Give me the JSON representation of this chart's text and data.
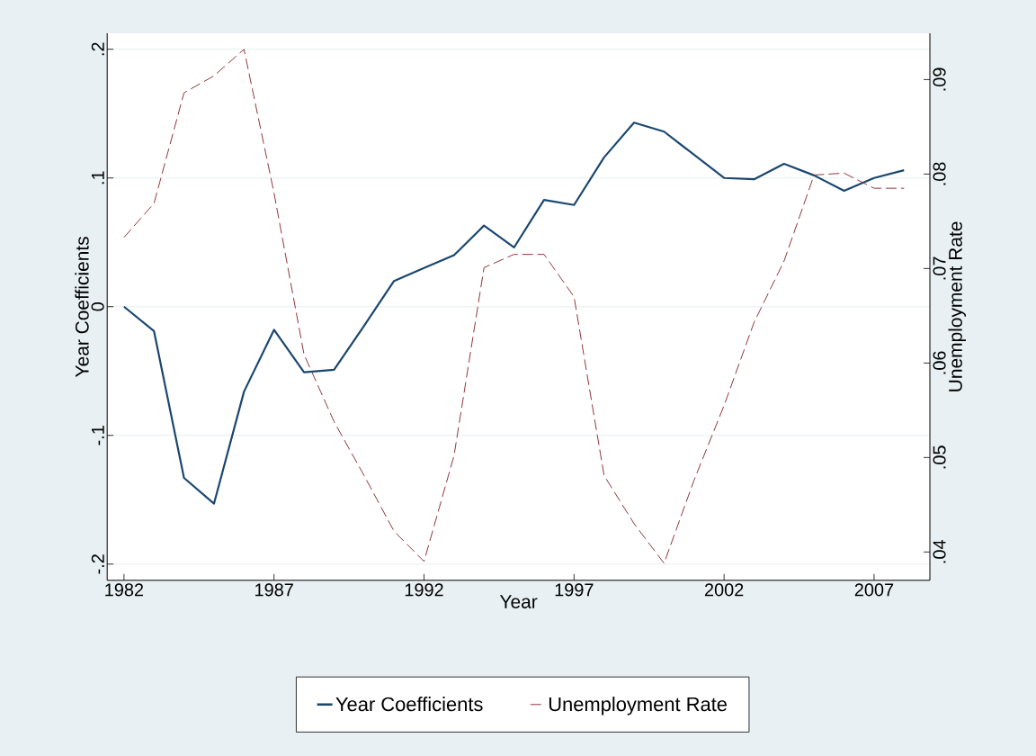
{
  "chart_data": {
    "type": "line",
    "xlabel": "Year",
    "ylabel": "Year Coefficients",
    "y2label": "Unemployment Rate",
    "x": [
      1982,
      1983,
      1984,
      1985,
      1986,
      1987,
      1988,
      1989,
      1990,
      1991,
      1992,
      1993,
      1994,
      1995,
      1996,
      1997,
      1998,
      1999,
      2000,
      2001,
      2002,
      2003,
      2004,
      2005,
      2006,
      2007,
      2008
    ],
    "xlim": [
      1981.44,
      2008.86
    ],
    "xticks": [
      1982,
      1987,
      1992,
      1997,
      2002,
      2007
    ],
    "ylim": [
      -0.2126,
      0.2124
    ],
    "yticks": [
      {
        "value": -0.2,
        "label": "-.2"
      },
      {
        "value": -0.1,
        "label": "-.1"
      },
      0,
      {
        "value": 0.1,
        "label": ".1"
      },
      {
        "value": 0.2,
        "label": ".2"
      }
    ],
    "y2lim": [
      0.037,
      0.0949
    ],
    "y2ticks": [
      {
        "value": 0.04,
        "label": ".04"
      },
      {
        "value": 0.05,
        "label": ".05"
      },
      {
        "value": 0.06,
        "label": ".06"
      },
      {
        "value": 0.07,
        "label": ".07"
      },
      {
        "value": 0.08,
        "label": ".08"
      },
      {
        "value": 0.09,
        "label": ".09"
      }
    ],
    "grid": "y",
    "legend": "bottom",
    "series": [
      {
        "name": "Year Coefficients",
        "color": "#1a476f",
        "line_style": "solid",
        "values": [
          0,
          -0.019,
          -0.133,
          -0.153,
          -0.066,
          -0.018,
          -0.051,
          -0.049,
          -0.015,
          0.02,
          0.03,
          0.04,
          0.063,
          0.046,
          0.083,
          0.079,
          0.116,
          0.143,
          0.136,
          0.118,
          0.1,
          0.099,
          0.111,
          0.102,
          0.09,
          0.1,
          0.106
        ]
      },
      {
        "name": "Unemployment Rate",
        "color": "#90353b",
        "line_style": "dashed",
        "axis": "y2",
        "values": [
          0.0733,
          0.0769,
          0.0886,
          0.0904,
          0.0932,
          0.078,
          0.0609,
          0.0538,
          0.0481,
          0.0422,
          0.039,
          0.0502,
          0.0701,
          0.0715,
          0.0715,
          0.067,
          0.0481,
          0.043,
          0.0388,
          0.0476,
          0.0555,
          0.0643,
          0.0708,
          0.0799,
          0.0801,
          0.0785,
          0.0785
        ]
      }
    ]
  }
}
